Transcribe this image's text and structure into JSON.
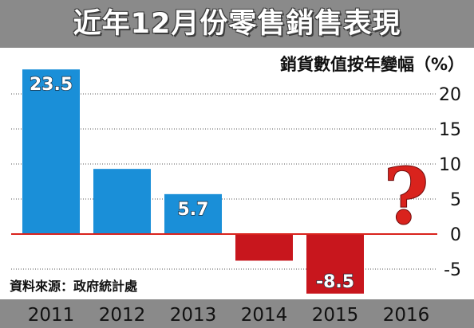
{
  "header": {
    "title": "近年12月份零售銷售表現"
  },
  "unit_label": "銷貨數值按年變幅（%）",
  "source_note": "資料來源：政府統計處",
  "annotation_mark": "?",
  "colors": {
    "positive_bar": "#1a8fd8",
    "negative_bar": "#c8161d",
    "zero_line": "#d9231d",
    "header_band": "#8a8a8a",
    "question_mark": "#d9231d"
  },
  "chart_data": {
    "type": "bar",
    "title": "近年12月份零售銷售表現",
    "ylabel": "銷貨數值按年變幅（%）",
    "xlabel": "",
    "categories": [
      "2011",
      "2012",
      "2013",
      "2014",
      "2015",
      "2016"
    ],
    "values": [
      23.5,
      9.3,
      5.7,
      -3.8,
      -8.5,
      null
    ],
    "data_labels": [
      "23.5",
      "",
      "5.7",
      "",
      "-8.5",
      ""
    ],
    "ylim": [
      -8,
      24
    ],
    "yticks": [
      20,
      15,
      10,
      5,
      0,
      -5
    ],
    "ytick_labels": [
      "20",
      "15",
      "10",
      "5",
      "0",
      "-5"
    ],
    "grid": true,
    "legend": "none"
  }
}
